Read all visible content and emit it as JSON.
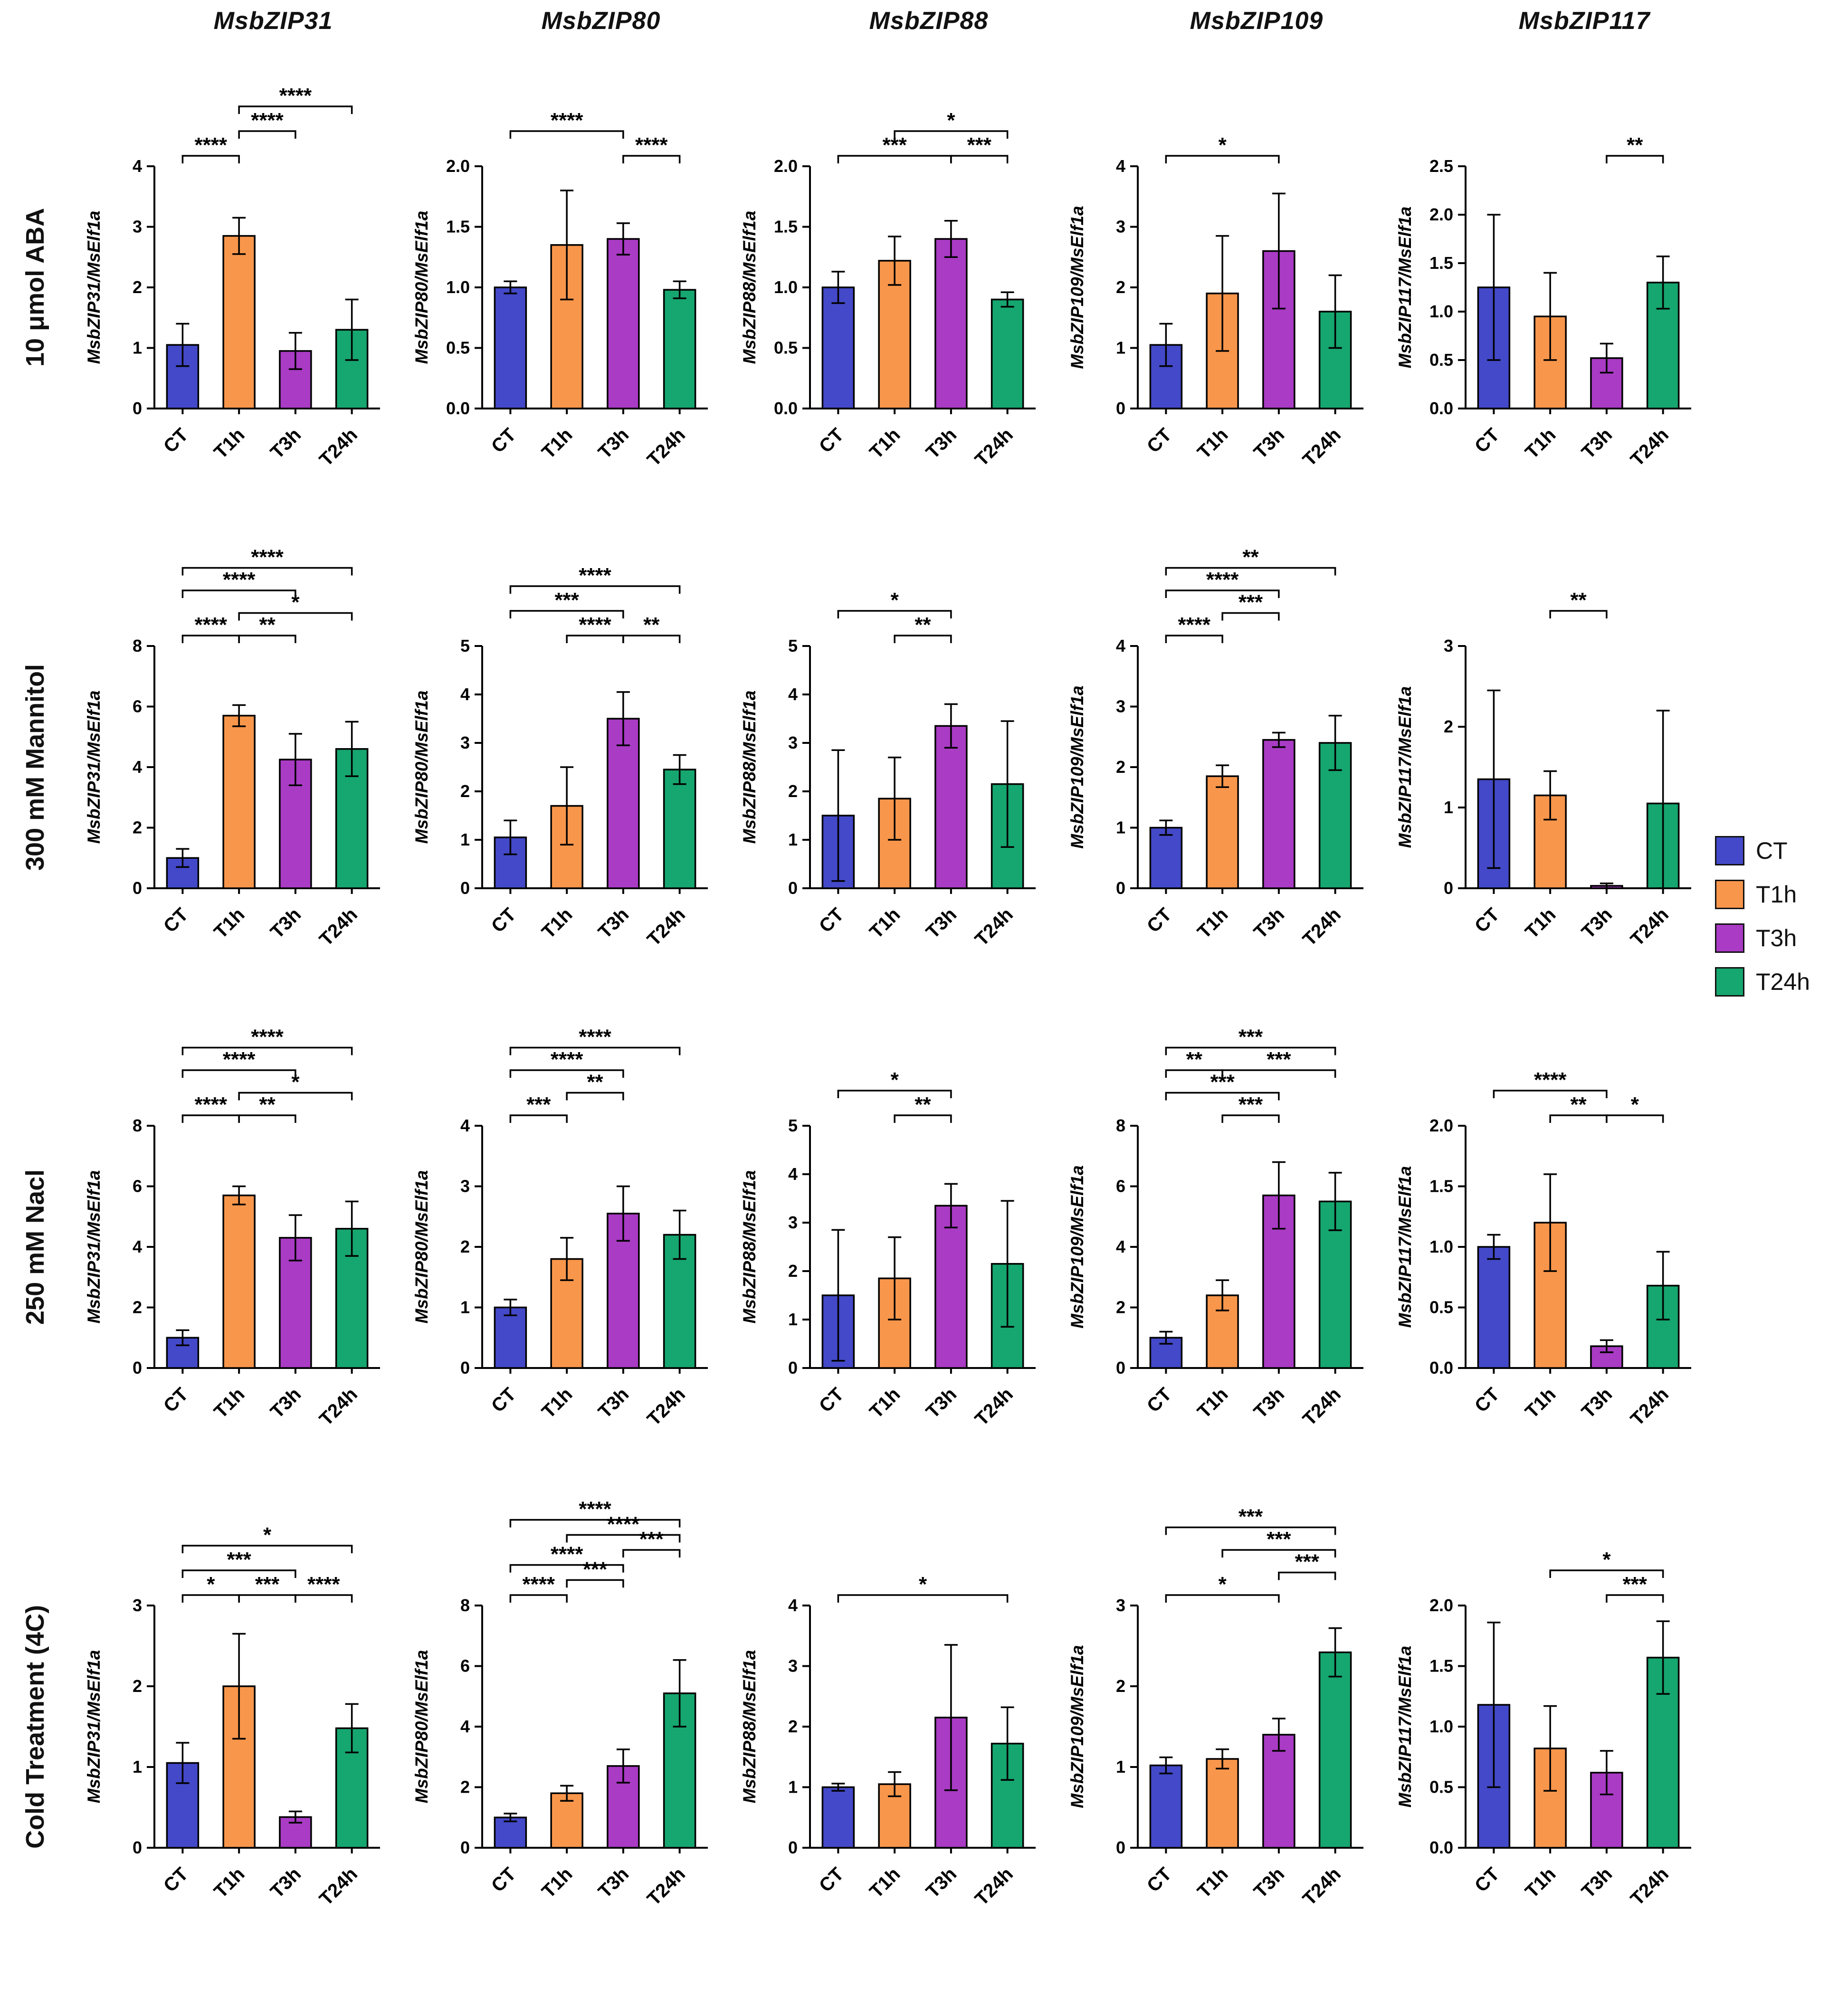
{
  "figure": {
    "background": "#ffffff"
  },
  "columns": [
    "MsbZIP31",
    "MsbZIP80",
    "MsbZIP88",
    "MsbZIP109",
    "MsbZIP117"
  ],
  "rows": [
    {
      "label": "10 μmol ABA"
    },
    {
      "label": "300 mM Mannitol"
    },
    {
      "label": "250 mM Nacl"
    },
    {
      "label": "Cold Treatment (4C)"
    }
  ],
  "categories": [
    "CT",
    "T1h",
    "T3h",
    "T24h"
  ],
  "legend": {
    "items": [
      {
        "label": "CT",
        "color": "#4349c8"
      },
      {
        "label": "T1h",
        "color": "#f8964b"
      },
      {
        "label": "T3h",
        "color": "#a93bc4"
      },
      {
        "label": "T24h",
        "color": "#16a66f"
      }
    ]
  },
  "chart_data": [
    {
      "type": "bar",
      "row": 0,
      "col": 0,
      "ylabel": "MsbZIP31/MsElf1a",
      "ylim": [
        0,
        4
      ],
      "yticks": [
        0,
        1,
        2,
        3,
        4
      ],
      "values": [
        1.05,
        2.85,
        0.95,
        1.3
      ],
      "errors": [
        0.35,
        0.3,
        0.3,
        0.5
      ],
      "brackets": [
        {
          "from": 0,
          "to": 1,
          "label": "****",
          "level": 1
        },
        {
          "from": 1,
          "to": 2,
          "label": "****",
          "level": 2
        },
        {
          "from": 1,
          "to": 3,
          "label": "****",
          "level": 3
        }
      ]
    },
    {
      "type": "bar",
      "row": 0,
      "col": 1,
      "ylabel": "MsbZIP80/MsElf1a",
      "ylim": [
        0,
        2
      ],
      "yticks": [
        0,
        0.5,
        1,
        1.5,
        2
      ],
      "values": [
        1.0,
        1.35,
        1.4,
        0.98
      ],
      "errors": [
        0.05,
        0.45,
        0.13,
        0.07
      ],
      "brackets": [
        {
          "from": 2,
          "to": 3,
          "label": "****",
          "level": 1
        },
        {
          "from": 0,
          "to": 2,
          "label": "****",
          "level": 2
        }
      ]
    },
    {
      "type": "bar",
      "row": 0,
      "col": 2,
      "ylabel": "MsbZIP88/MsElf1a",
      "ylim": [
        0,
        2
      ],
      "yticks": [
        0,
        0.5,
        1,
        1.5,
        2
      ],
      "values": [
        1.0,
        1.22,
        1.4,
        0.9
      ],
      "errors": [
        0.13,
        0.2,
        0.15,
        0.06
      ],
      "brackets": [
        {
          "from": 0,
          "to": 2,
          "label": "***",
          "level": 1
        },
        {
          "from": 2,
          "to": 3,
          "label": "***",
          "level": 1
        },
        {
          "from": 1,
          "to": 3,
          "label": "*",
          "level": 2
        }
      ]
    },
    {
      "type": "bar",
      "row": 0,
      "col": 3,
      "ylabel": "MsbZIP109/MsElf1a",
      "ylim": [
        0,
        4
      ],
      "yticks": [
        0,
        1,
        2,
        3,
        4
      ],
      "values": [
        1.05,
        1.9,
        2.6,
        1.6
      ],
      "errors": [
        0.35,
        0.95,
        0.95,
        0.6
      ],
      "brackets": [
        {
          "from": 0,
          "to": 2,
          "label": "*",
          "level": 1
        }
      ]
    },
    {
      "type": "bar",
      "row": 0,
      "col": 4,
      "ylabel": "MsbZIP117/MsElf1a",
      "ylim": [
        0,
        2.5
      ],
      "yticks": [
        0,
        0.5,
        1,
        1.5,
        2,
        2.5
      ],
      "values": [
        1.25,
        0.95,
        0.52,
        1.3
      ],
      "errors": [
        0.75,
        0.45,
        0.15,
        0.27
      ],
      "brackets": [
        {
          "from": 2,
          "to": 3,
          "label": "**",
          "level": 1
        }
      ]
    },
    {
      "type": "bar",
      "row": 1,
      "col": 0,
      "ylabel": "MsbZIP31/MsElf1a",
      "ylim": [
        0,
        8
      ],
      "yticks": [
        0,
        2,
        4,
        6,
        8
      ],
      "values": [
        1.0,
        5.7,
        4.25,
        4.6
      ],
      "errors": [
        0.3,
        0.35,
        0.85,
        0.9
      ],
      "brackets": [
        {
          "from": 0,
          "to": 1,
          "label": "****",
          "level": 1
        },
        {
          "from": 1,
          "to": 2,
          "label": "**",
          "level": 1
        },
        {
          "from": 1,
          "to": 3,
          "label": "*",
          "level": 2
        },
        {
          "from": 0,
          "to": 2,
          "label": "****",
          "level": 3
        },
        {
          "from": 0,
          "to": 3,
          "label": "****",
          "level": 4
        }
      ]
    },
    {
      "type": "bar",
      "row": 1,
      "col": 1,
      "ylabel": "MsbZIP80/MsElf1a",
      "ylim": [
        0,
        5
      ],
      "yticks": [
        0,
        1,
        2,
        3,
        4,
        5
      ],
      "values": [
        1.05,
        1.7,
        3.5,
        2.45
      ],
      "errors": [
        0.35,
        0.8,
        0.55,
        0.3
      ],
      "brackets": [
        {
          "from": 1,
          "to": 2,
          "label": "****",
          "level": 1
        },
        {
          "from": 2,
          "to": 3,
          "label": "**",
          "level": 1
        },
        {
          "from": 0,
          "to": 2,
          "label": "***",
          "level": 2
        },
        {
          "from": 0,
          "to": 3,
          "label": "****",
          "level": 3
        }
      ]
    },
    {
      "type": "bar",
      "row": 1,
      "col": 2,
      "ylabel": "MsbZIP88/MsElf1a",
      "ylim": [
        0,
        5
      ],
      "yticks": [
        0,
        1,
        2,
        3,
        4,
        5
      ],
      "values": [
        1.5,
        1.85,
        3.35,
        2.15
      ],
      "errors": [
        1.35,
        0.85,
        0.45,
        1.3
      ],
      "brackets": [
        {
          "from": 1,
          "to": 2,
          "label": "**",
          "level": 1
        },
        {
          "from": 0,
          "to": 2,
          "label": "*",
          "level": 2
        }
      ]
    },
    {
      "type": "bar",
      "row": 1,
      "col": 3,
      "ylabel": "MsbZIP109/MsElf1a",
      "ylim": [
        0,
        4
      ],
      "yticks": [
        0,
        1,
        2,
        3,
        4
      ],
      "values": [
        1.0,
        1.85,
        2.45,
        2.4
      ],
      "errors": [
        0.12,
        0.18,
        0.12,
        0.45
      ],
      "brackets": [
        {
          "from": 0,
          "to": 1,
          "label": "****",
          "level": 1
        },
        {
          "from": 1,
          "to": 2,
          "label": "***",
          "level": 2
        },
        {
          "from": 0,
          "to": 2,
          "label": "****",
          "level": 3
        },
        {
          "from": 0,
          "to": 3,
          "label": "**",
          "level": 4
        }
      ]
    },
    {
      "type": "bar",
      "row": 1,
      "col": 4,
      "ylabel": "MsbZIP117/MsElf1a",
      "ylim": [
        0,
        3
      ],
      "yticks": [
        0,
        1,
        2,
        3
      ],
      "values": [
        1.35,
        1.15,
        0.03,
        1.05
      ],
      "errors": [
        1.1,
        0.3,
        0.03,
        1.15
      ],
      "brackets": [
        {
          "from": 1,
          "to": 2,
          "label": "**",
          "level": 2
        }
      ]
    },
    {
      "type": "bar",
      "row": 2,
      "col": 0,
      "ylabel": "MsbZIP31/MsElf1a",
      "ylim": [
        0,
        8
      ],
      "yticks": [
        0,
        2,
        4,
        6,
        8
      ],
      "values": [
        1.0,
        5.7,
        4.3,
        4.6
      ],
      "errors": [
        0.25,
        0.3,
        0.75,
        0.9
      ],
      "brackets": [
        {
          "from": 0,
          "to": 1,
          "label": "****",
          "level": 1
        },
        {
          "from": 1,
          "to": 2,
          "label": "**",
          "level": 1
        },
        {
          "from": 1,
          "to": 3,
          "label": "*",
          "level": 2
        },
        {
          "from": 0,
          "to": 2,
          "label": "****",
          "level": 3
        },
        {
          "from": 0,
          "to": 3,
          "label": "****",
          "level": 4
        }
      ]
    },
    {
      "type": "bar",
      "row": 2,
      "col": 1,
      "ylabel": "MsbZIP80/MsElf1a",
      "ylim": [
        0,
        4
      ],
      "yticks": [
        0,
        1,
        2,
        3,
        4
      ],
      "values": [
        1.0,
        1.8,
        2.55,
        2.2
      ],
      "errors": [
        0.13,
        0.35,
        0.45,
        0.4
      ],
      "brackets": [
        {
          "from": 0,
          "to": 1,
          "label": "***",
          "level": 1
        },
        {
          "from": 1,
          "to": 2,
          "label": "**",
          "level": 2
        },
        {
          "from": 0,
          "to": 2,
          "label": "****",
          "level": 3
        },
        {
          "from": 0,
          "to": 3,
          "label": "****",
          "level": 4
        }
      ]
    },
    {
      "type": "bar",
      "row": 2,
      "col": 2,
      "ylabel": "MsbZIP88/MsElf1a",
      "ylim": [
        0,
        5
      ],
      "yticks": [
        0,
        1,
        2,
        3,
        4,
        5
      ],
      "values": [
        1.5,
        1.85,
        3.35,
        2.15
      ],
      "errors": [
        1.35,
        0.85,
        0.45,
        1.3
      ],
      "brackets": [
        {
          "from": 1,
          "to": 2,
          "label": "**",
          "level": 1
        },
        {
          "from": 0,
          "to": 2,
          "label": "*",
          "level": 2
        }
      ]
    },
    {
      "type": "bar",
      "row": 2,
      "col": 3,
      "ylabel": "MsbZIP109/MsElf1a",
      "ylim": [
        0,
        8
      ],
      "yticks": [
        0,
        2,
        4,
        6,
        8
      ],
      "values": [
        1.0,
        2.4,
        5.7,
        5.5
      ],
      "errors": [
        0.2,
        0.5,
        1.1,
        0.95
      ],
      "brackets": [
        {
          "from": 1,
          "to": 2,
          "label": "***",
          "level": 1
        },
        {
          "from": 0,
          "to": 2,
          "label": "***",
          "level": 2
        },
        {
          "from": 0,
          "to": 1,
          "label": "**",
          "level": 3
        },
        {
          "from": 1,
          "to": 3,
          "label": "***",
          "level": 3
        },
        {
          "from": 0,
          "to": 3,
          "label": "***",
          "level": 4
        }
      ]
    },
    {
      "type": "bar",
      "row": 2,
      "col": 4,
      "ylabel": "MsbZIP117/MsElf1a",
      "ylim": [
        0,
        2
      ],
      "yticks": [
        0,
        0.5,
        1,
        1.5,
        2
      ],
      "values": [
        1.0,
        1.2,
        0.18,
        0.68
      ],
      "errors": [
        0.1,
        0.4,
        0.05,
        0.28
      ],
      "brackets": [
        {
          "from": 1,
          "to": 2,
          "label": "**",
          "level": 1
        },
        {
          "from": 2,
          "to": 3,
          "label": "*",
          "level": 1
        },
        {
          "from": 0,
          "to": 2,
          "label": "****",
          "level": 2
        }
      ]
    },
    {
      "type": "bar",
      "row": 3,
      "col": 0,
      "ylabel": "MsbZIP31/MsElf1a",
      "ylim": [
        0,
        3
      ],
      "yticks": [
        0,
        1,
        2,
        3
      ],
      "values": [
        1.05,
        2.0,
        0.38,
        1.48
      ],
      "errors": [
        0.25,
        0.65,
        0.07,
        0.3
      ],
      "brackets": [
        {
          "from": 0,
          "to": 1,
          "label": "*",
          "level": 1
        },
        {
          "from": 1,
          "to": 2,
          "label": "***",
          "level": 1
        },
        {
          "from": 2,
          "to": 3,
          "label": "****",
          "level": 1
        },
        {
          "from": 0,
          "to": 2,
          "label": "***",
          "level": 2
        },
        {
          "from": 0,
          "to": 3,
          "label": "*",
          "level": 3
        }
      ]
    },
    {
      "type": "bar",
      "row": 3,
      "col": 1,
      "ylabel": "MsbZIP80/MsElf1a",
      "ylim": [
        0,
        8
      ],
      "yticks": [
        0,
        2,
        4,
        6,
        8
      ],
      "values": [
        1.0,
        1.8,
        2.7,
        5.1
      ],
      "errors": [
        0.13,
        0.25,
        0.55,
        1.1
      ],
      "brackets": [
        {
          "from": 0,
          "to": 1,
          "label": "****",
          "level": 1
        },
        {
          "from": 1,
          "to": 2,
          "label": "***",
          "level": 2
        },
        {
          "from": 0,
          "to": 2,
          "label": "****",
          "level": 3
        },
        {
          "from": 2,
          "to": 3,
          "label": "***",
          "level": 4
        },
        {
          "from": 1,
          "to": 3,
          "label": "****",
          "level": 5
        },
        {
          "from": 0,
          "to": 3,
          "label": "****",
          "level": 6
        }
      ]
    },
    {
      "type": "bar",
      "row": 3,
      "col": 2,
      "ylabel": "MsbZIP88/MsElf1a",
      "ylim": [
        0,
        4
      ],
      "yticks": [
        0,
        1,
        2,
        3,
        4
      ],
      "values": [
        1.0,
        1.05,
        2.15,
        1.72
      ],
      "errors": [
        0.06,
        0.2,
        1.2,
        0.6
      ],
      "brackets": [
        {
          "from": 0,
          "to": 3,
          "label": "*",
          "level": 1
        }
      ]
    },
    {
      "type": "bar",
      "row": 3,
      "col": 3,
      "ylabel": "MsbZIP109/MsElf1a",
      "ylim": [
        0,
        3
      ],
      "yticks": [
        0,
        1,
        2,
        3
      ],
      "values": [
        1.02,
        1.1,
        1.4,
        2.42
      ],
      "errors": [
        0.1,
        0.12,
        0.2,
        0.3
      ],
      "brackets": [
        {
          "from": 0,
          "to": 2,
          "label": "*",
          "level": 1
        },
        {
          "from": 2,
          "to": 3,
          "label": "***",
          "level": 2
        },
        {
          "from": 1,
          "to": 3,
          "label": "***",
          "level": 3
        },
        {
          "from": 0,
          "to": 3,
          "label": "***",
          "level": 4
        }
      ]
    },
    {
      "type": "bar",
      "row": 3,
      "col": 4,
      "ylabel": "MsbZIP117/MsElf1a",
      "ylim": [
        0,
        2
      ],
      "yticks": [
        0,
        0.5,
        1,
        1.5,
        2
      ],
      "values": [
        1.18,
        0.82,
        0.62,
        1.57
      ],
      "errors": [
        0.68,
        0.35,
        0.18,
        0.3
      ],
      "brackets": [
        {
          "from": 2,
          "to": 3,
          "label": "***",
          "level": 1
        },
        {
          "from": 1,
          "to": 3,
          "label": "*",
          "level": 2
        }
      ]
    }
  ]
}
